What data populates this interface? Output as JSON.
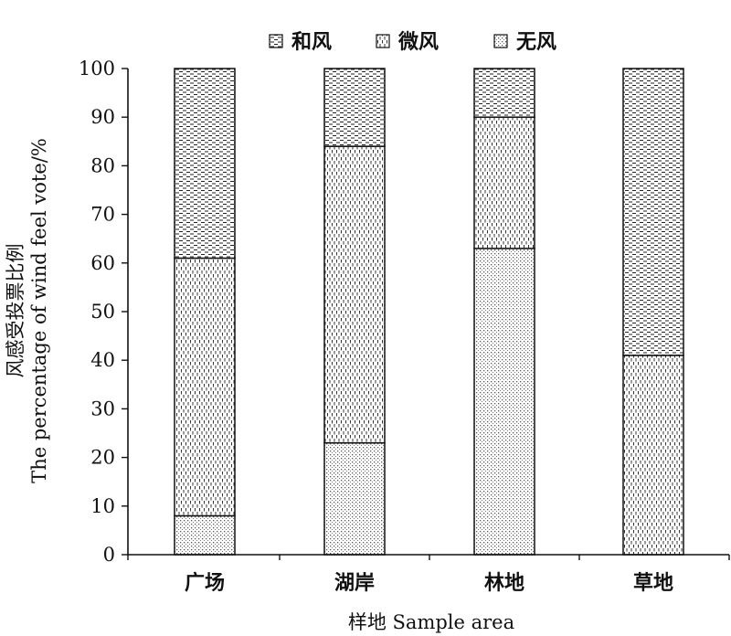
{
  "chart_data": {
    "type": "bar",
    "stacked": true,
    "categories": [
      "广场",
      "湖岸",
      "林地",
      "草地"
    ],
    "series": [
      {
        "name": "无风",
        "pattern": "dots",
        "values": [
          8,
          23,
          63,
          0
        ]
      },
      {
        "name": "微风",
        "pattern": "dashes-vertical",
        "values": [
          53,
          61,
          27,
          41
        ]
      },
      {
        "name": "和风",
        "pattern": "dashes-horizontal",
        "values": [
          39,
          16,
          10,
          59
        ]
      }
    ],
    "legend_order": [
      "和风",
      "微风",
      "无风"
    ],
    "legend_position": "top",
    "xlabel": "样地 Sample area",
    "ylabel_line1": "风感受投票比例",
    "ylabel_line2": "The percentage of wind feel vote/%",
    "ylim": [
      0,
      100
    ],
    "yticks": [
      0,
      10,
      20,
      30,
      40,
      50,
      60,
      70,
      80,
      90,
      100
    ],
    "grid": false
  }
}
